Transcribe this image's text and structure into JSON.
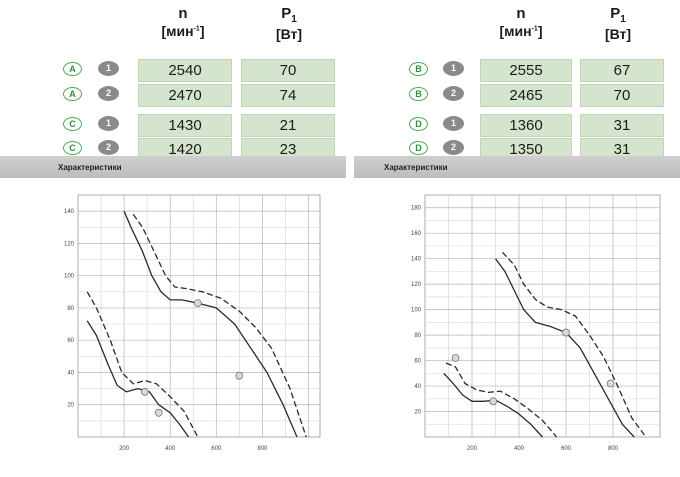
{
  "headers": {
    "speed_symbol": "n",
    "speed_unit": "[мин-1]",
    "power_symbol": "P",
    "power_sub": "1",
    "power_unit": "[Вт]"
  },
  "tables": [
    {
      "rows": [
        {
          "curve": "A",
          "step": "1",
          "n": "2540",
          "p1": "70"
        },
        {
          "curve": "A",
          "step": "2",
          "n": "2470",
          "p1": "74"
        },
        {
          "curve": "C",
          "step": "1",
          "n": "1430",
          "p1": "21"
        },
        {
          "curve": "C",
          "step": "2",
          "n": "1420",
          "p1": "23"
        }
      ]
    },
    {
      "rows": [
        {
          "curve": "B",
          "step": "1",
          "n": "2555",
          "p1": "67"
        },
        {
          "curve": "B",
          "step": "2",
          "n": "2465",
          "p1": "70"
        },
        {
          "curve": "D",
          "step": "1",
          "n": "1360",
          "p1": "31"
        },
        {
          "curve": "D",
          "step": "2",
          "n": "1350",
          "p1": "31"
        }
      ]
    }
  ],
  "section_label": "Характеристики",
  "chart_data": [
    {
      "type": "line",
      "xlim": [
        0,
        1050
      ],
      "ylim": [
        0,
        150
      ],
      "x_ticks": [
        200,
        400,
        600,
        800
      ],
      "y_ticks": [
        20,
        40,
        60,
        80,
        100,
        120,
        140
      ],
      "grid": true,
      "legend": "bottom-right",
      "series": [
        {
          "style": "solid",
          "x": [
            200,
            230,
            280,
            320,
            360,
            400,
            450,
            520,
            600,
            680,
            750,
            820,
            890,
            950
          ],
          "y": [
            140,
            130,
            115,
            100,
            90,
            85,
            85,
            83,
            80,
            70,
            55,
            40,
            20,
            0
          ]
        },
        {
          "style": "dashed",
          "x": [
            240,
            280,
            330,
            380,
            420,
            470,
            540,
            620,
            700,
            770,
            840,
            920,
            990
          ],
          "y": [
            138,
            130,
            115,
            100,
            93,
            92,
            90,
            86,
            78,
            68,
            55,
            30,
            0
          ]
        },
        {
          "style": "solid",
          "x": [
            40,
            80,
            130,
            170,
            210,
            260,
            310,
            350,
            400,
            440,
            480
          ],
          "y": [
            72,
            63,
            45,
            32,
            28,
            30,
            28,
            20,
            15,
            8,
            0
          ]
        },
        {
          "style": "dashed",
          "x": [
            40,
            80,
            140,
            190,
            240,
            290,
            340,
            400,
            460,
            520
          ],
          "y": [
            90,
            80,
            60,
            40,
            33,
            35,
            33,
            25,
            16,
            0
          ]
        }
      ],
      "points": [
        {
          "x": 520,
          "y": 83,
          "label": ""
        },
        {
          "x": 700,
          "y": 38,
          "label": ""
        },
        {
          "x": 290,
          "y": 28,
          "label": ""
        },
        {
          "x": 350,
          "y": 15,
          "label": ""
        }
      ]
    },
    {
      "type": "line",
      "xlim": [
        0,
        1000
      ],
      "ylim": [
        0,
        190
      ],
      "x_ticks": [
        200,
        400,
        600,
        800
      ],
      "y_ticks": [
        20,
        40,
        60,
        80,
        100,
        120,
        140,
        160,
        180
      ],
      "grid": true,
      "legend": "bottom-right",
      "series": [
        {
          "style": "solid",
          "x": [
            300,
            340,
            380,
            420,
            470,
            530,
            600,
            660,
            720,
            780,
            840,
            890
          ],
          "y": [
            140,
            130,
            115,
            100,
            90,
            87,
            82,
            70,
            50,
            30,
            10,
            0
          ]
        },
        {
          "style": "dashed",
          "x": [
            330,
            380,
            420,
            470,
            520,
            580,
            640,
            700,
            760,
            820,
            880,
            940
          ],
          "y": [
            145,
            135,
            120,
            108,
            102,
            100,
            95,
            80,
            63,
            40,
            15,
            0
          ]
        },
        {
          "style": "solid",
          "x": [
            80,
            120,
            160,
            200,
            250,
            300,
            350,
            400,
            450,
            500
          ],
          "y": [
            50,
            42,
            33,
            28,
            28,
            29,
            24,
            18,
            10,
            0
          ]
        },
        {
          "style": "dashed",
          "x": [
            90,
            130,
            170,
            220,
            270,
            320,
            380,
            440,
            500,
            560
          ],
          "y": [
            58,
            55,
            42,
            37,
            35,
            36,
            30,
            22,
            13,
            0
          ]
        }
      ],
      "points": [
        {
          "x": 600,
          "y": 82,
          "label": ""
        },
        {
          "x": 790,
          "y": 42,
          "label": ""
        },
        {
          "x": 130,
          "y": 62,
          "label": ""
        },
        {
          "x": 290,
          "y": 28,
          "label": ""
        }
      ]
    }
  ]
}
